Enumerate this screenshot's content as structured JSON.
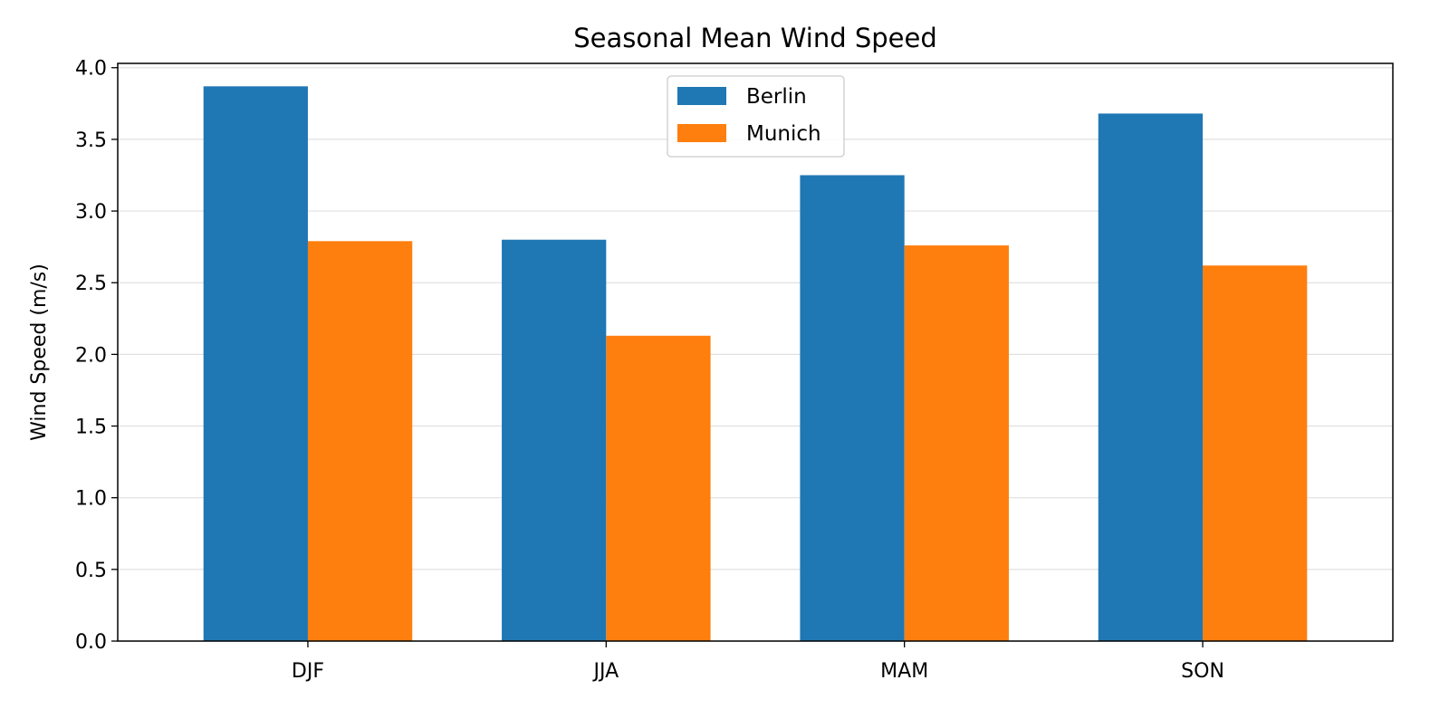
{
  "chart_data": {
    "type": "bar",
    "title": "Seasonal Mean Wind Speed",
    "xlabel": "",
    "ylabel": "Wind Speed (m/s)",
    "categories": [
      "DJF",
      "JJA",
      "MAM",
      "SON"
    ],
    "series": [
      {
        "name": "Berlin",
        "color": "#1f77b4",
        "values": [
          3.87,
          2.8,
          3.25,
          3.68
        ]
      },
      {
        "name": "Munich",
        "color": "#ff7f0e",
        "values": [
          2.79,
          2.13,
          2.76,
          2.62
        ]
      }
    ],
    "ylim": [
      0,
      4.03
    ],
    "yticks": [
      0.0,
      0.5,
      1.0,
      1.5,
      2.0,
      2.5,
      3.0,
      3.5,
      4.0
    ],
    "ytick_labels": [
      "0.0",
      "0.5",
      "1.0",
      "1.5",
      "2.0",
      "2.5",
      "3.0",
      "3.5",
      "4.0"
    ],
    "grid": "horizontal",
    "legend_position": "top-center"
  }
}
